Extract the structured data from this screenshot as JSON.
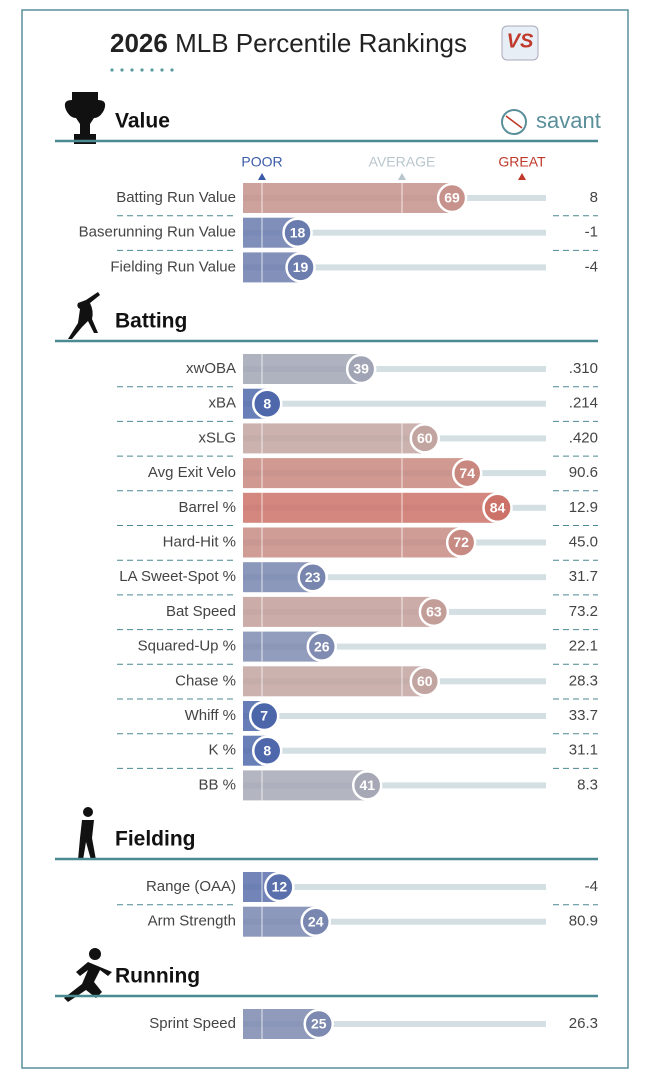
{
  "title_year": "2026",
  "title": "MLB Percentile Rankings",
  "badge": "VS",
  "brand": "savant",
  "scale": {
    "poor": "POOR",
    "average": "AVERAGE",
    "great": "GREAT"
  },
  "sections": [
    {
      "name": "Value",
      "rows": [
        {
          "label": "Batting Run Value",
          "percentile": 69,
          "value": "8"
        },
        {
          "label": "Baserunning Run Value",
          "percentile": 18,
          "value": "-1"
        },
        {
          "label": "Fielding Run Value",
          "percentile": 19,
          "value": "-4"
        }
      ]
    },
    {
      "name": "Batting",
      "rows": [
        {
          "label": "xwOBA",
          "percentile": 39,
          "value": ".310"
        },
        {
          "label": "xBA",
          "percentile": 8,
          "value": ".214"
        },
        {
          "label": "xSLG",
          "percentile": 60,
          "value": ".420"
        },
        {
          "label": "Avg Exit Velo",
          "percentile": 74,
          "value": "90.6"
        },
        {
          "label": "Barrel %",
          "percentile": 84,
          "value": "12.9"
        },
        {
          "label": "Hard-Hit %",
          "percentile": 72,
          "value": "45.0"
        },
        {
          "label": "LA Sweet-Spot %",
          "percentile": 23,
          "value": "31.7"
        },
        {
          "label": "Bat Speed",
          "percentile": 63,
          "value": "73.2"
        },
        {
          "label": "Squared-Up %",
          "percentile": 26,
          "value": "22.1"
        },
        {
          "label": "Chase %",
          "percentile": 60,
          "value": "28.3"
        },
        {
          "label": "Whiff %",
          "percentile": 7,
          "value": "33.7"
        },
        {
          "label": "K %",
          "percentile": 8,
          "value": "31.1"
        },
        {
          "label": "BB %",
          "percentile": 41,
          "value": "8.3"
        }
      ]
    },
    {
      "name": "Fielding",
      "rows": [
        {
          "label": "Range (OAA)",
          "percentile": 12,
          "value": "-4"
        },
        {
          "label": "Arm Strength",
          "percentile": 24,
          "value": "80.9"
        }
      ]
    },
    {
      "name": "Running",
      "rows": [
        {
          "label": "Sprint Speed",
          "percentile": 25,
          "value": "26.3"
        }
      ]
    }
  ]
}
